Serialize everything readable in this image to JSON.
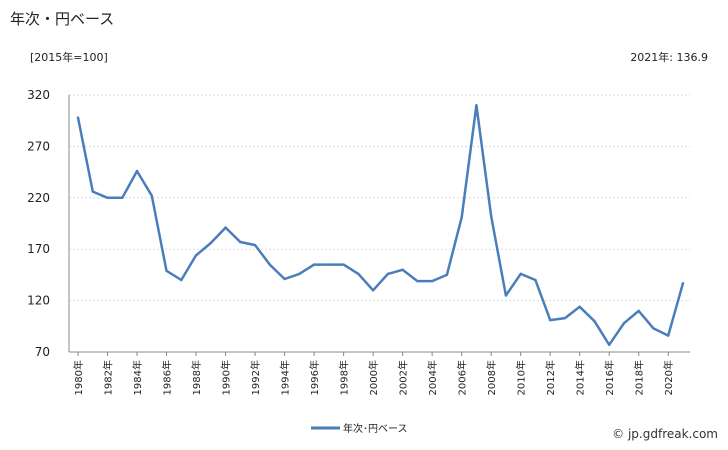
{
  "page": {
    "title": "年次・円ベース",
    "unit_note": "[2015年=100]",
    "latest_note": "2021年: 136.9",
    "credit": "© jp.gdfreak.com"
  },
  "colors": {
    "line": "#4a7ebb",
    "grid": "#d9d9d9",
    "axis": "#888888"
  },
  "chart_data": {
    "type": "line",
    "title": "",
    "xlabel": "",
    "ylabel": "",
    "ylim": [
      70,
      320
    ],
    "yticks": [
      70,
      120,
      170,
      220,
      270,
      320
    ],
    "grid": true,
    "legend_position": "bottom-center",
    "x": [
      "1980年",
      "1981年",
      "1982年",
      "1983年",
      "1984年",
      "1985年",
      "1986年",
      "1987年",
      "1988年",
      "1989年",
      "1990年",
      "1991年",
      "1992年",
      "1993年",
      "1994年",
      "1995年",
      "1996年",
      "1997年",
      "1998年",
      "1999年",
      "2000年",
      "2001年",
      "2002年",
      "2003年",
      "2004年",
      "2005年",
      "2006年",
      "2007年",
      "2008年",
      "2009年",
      "2010年",
      "2011年",
      "2012年",
      "2013年",
      "2014年",
      "2015年",
      "2016年",
      "2017年",
      "2018年",
      "2019年",
      "2020年",
      "2021年"
    ],
    "tick_labels": [
      "1980年",
      "1982年",
      "1984年",
      "1986年",
      "1988年",
      "1990年",
      "1992年",
      "1994年",
      "1996年",
      "1998年",
      "2000年",
      "2002年",
      "2004年",
      "2006年",
      "2008年",
      "2010年",
      "2012年",
      "2014年",
      "2016年",
      "2018年",
      "2020年"
    ],
    "series": [
      {
        "name": "年次･円ベース",
        "values": [
          298,
          226,
          220,
          220,
          246,
          222,
          149,
          140,
          164,
          176,
          191,
          177,
          174,
          155,
          141,
          146,
          155,
          155,
          155,
          146,
          130,
          146,
          150,
          139,
          139,
          145,
          201,
          310,
          202,
          125,
          146,
          140,
          101,
          103,
          114,
          100,
          77,
          98,
          110,
          93,
          86,
          136.9
        ]
      }
    ]
  }
}
